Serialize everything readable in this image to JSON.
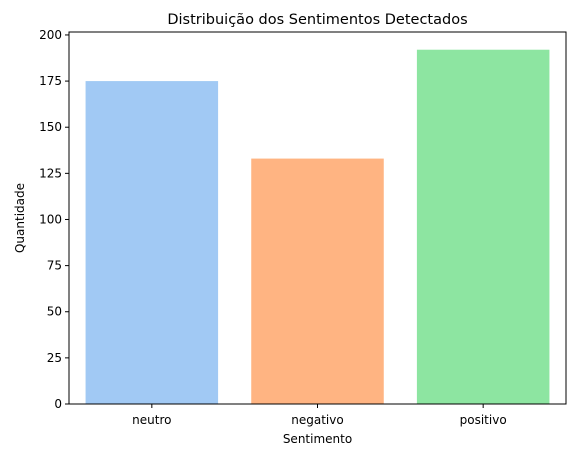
{
  "chart_data": {
    "type": "bar",
    "title": "Distribuição dos Sentimentos Detectados",
    "xlabel": "Sentimento",
    "ylabel": "Quantidade",
    "categories": [
      "neutro",
      "negativo",
      "positivo"
    ],
    "values": [
      175,
      133,
      192
    ],
    "colors": [
      "#a1c9f4",
      "#ffb482",
      "#8de5a1"
    ],
    "ylim": [
      0,
      201.6
    ],
    "yticks": [
      0,
      25,
      50,
      75,
      100,
      125,
      150,
      175,
      200
    ],
    "grid": false,
    "legend": "none"
  }
}
